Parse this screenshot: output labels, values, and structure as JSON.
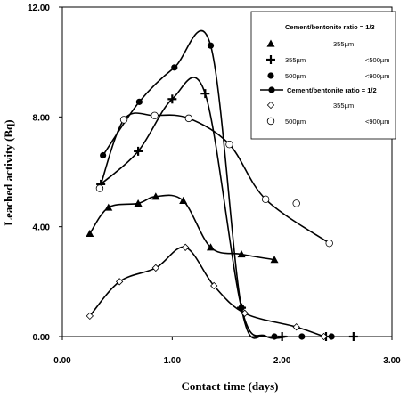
{
  "chart_data": {
    "type": "line",
    "xlabel": "Contact time (days)",
    "ylabel": "Leached activity (Bq)",
    "xlim": [
      0,
      3
    ],
    "ylim": [
      0,
      12
    ],
    "xticks": [
      "0.00",
      "1.00",
      "2.00",
      "3.00"
    ],
    "yticks": [
      "0.00",
      "4.00",
      "8.00",
      "12.00"
    ],
    "legend_position": "top-right",
    "legend": {
      "group1_title": "Cement/bentonite ratio = 1/3",
      "group2_title": "Cement/bentonite ratio = 1/2",
      "entries": [
        {
          "marker": "triangle",
          "col1": "355µm",
          "col2": ""
        },
        {
          "marker": "plus",
          "col1": "355µm",
          "col2": "<500µm"
        },
        {
          "marker": "circle",
          "col1": "500µm",
          "col2": "<900µm"
        },
        {
          "marker": "diamond",
          "col1": "355µm",
          "col2": ""
        },
        {
          "marker": "open-circle",
          "col1": "500µm",
          "col2": "<900µm"
        }
      ]
    },
    "series": [
      {
        "marker": "triangle",
        "x": [
          0.25,
          0.42,
          0.69,
          0.85,
          1.1,
          1.35,
          1.63,
          1.93
        ],
        "y": [
          3.75,
          4.7,
          4.85,
          5.1,
          4.95,
          3.25,
          3.0,
          2.8
        ]
      },
      {
        "marker": "plus",
        "x": [
          0.35,
          0.69,
          1.0,
          1.3,
          1.63,
          2.0,
          2.4,
          2.65
        ],
        "y": [
          5.55,
          6.75,
          8.65,
          8.85,
          1.05,
          0.0,
          0.0,
          0.0
        ]
      },
      {
        "marker": "circle",
        "x": [
          0.37,
          0.7,
          1.02,
          1.35,
          1.63,
          1.93,
          2.18,
          2.45
        ],
        "y": [
          6.6,
          8.55,
          9.8,
          10.6,
          1.05,
          0.0,
          0.0,
          0.0
        ]
      },
      {
        "marker": "diamond",
        "x": [
          0.25,
          0.52,
          0.85,
          1.12,
          1.38,
          1.66,
          2.13,
          2.38
        ],
        "y": [
          0.75,
          2.0,
          2.5,
          3.25,
          1.85,
          0.85,
          0.35,
          0.0
        ]
      },
      {
        "marker": "open-circle",
        "x": [
          0.34,
          0.56,
          0.84,
          1.15,
          1.52,
          1.85,
          2.13,
          2.43
        ],
        "y": [
          5.4,
          7.9,
          8.05,
          7.95,
          7.0,
          5.0,
          4.85,
          3.4
        ]
      }
    ],
    "curves": [
      {
        "series": 0,
        "x": [
          0.25,
          0.42,
          0.69,
          0.85,
          1.1,
          1.35,
          1.63,
          1.93
        ],
        "y": [
          3.75,
          4.7,
          4.85,
          5.1,
          4.95,
          3.25,
          3.0,
          2.8
        ]
      },
      {
        "series": 1,
        "x": [
          0.35,
          0.69,
          1.0,
          1.3,
          1.63,
          1.85,
          2.05
        ],
        "y": [
          5.55,
          6.75,
          8.65,
          8.85,
          1.05,
          0.02,
          0.0
        ]
      },
      {
        "series": 2,
        "x": [
          0.37,
          0.7,
          1.02,
          1.35,
          1.63,
          1.85,
          2.05
        ],
        "y": [
          6.6,
          8.55,
          9.8,
          10.6,
          1.05,
          0.02,
          0.0
        ]
      },
      {
        "series": 3,
        "x": [
          0.25,
          0.52,
          0.85,
          1.12,
          1.38,
          1.66,
          2.13,
          2.38
        ],
        "y": [
          0.75,
          2.0,
          2.5,
          3.25,
          1.85,
          0.85,
          0.35,
          0.0
        ]
      },
      {
        "series": 4,
        "x": [
          0.34,
          0.56,
          0.84,
          1.15,
          1.52,
          1.85,
          2.43
        ],
        "y": [
          5.4,
          7.9,
          8.05,
          7.95,
          7.0,
          5.0,
          3.4
        ]
      }
    ]
  }
}
